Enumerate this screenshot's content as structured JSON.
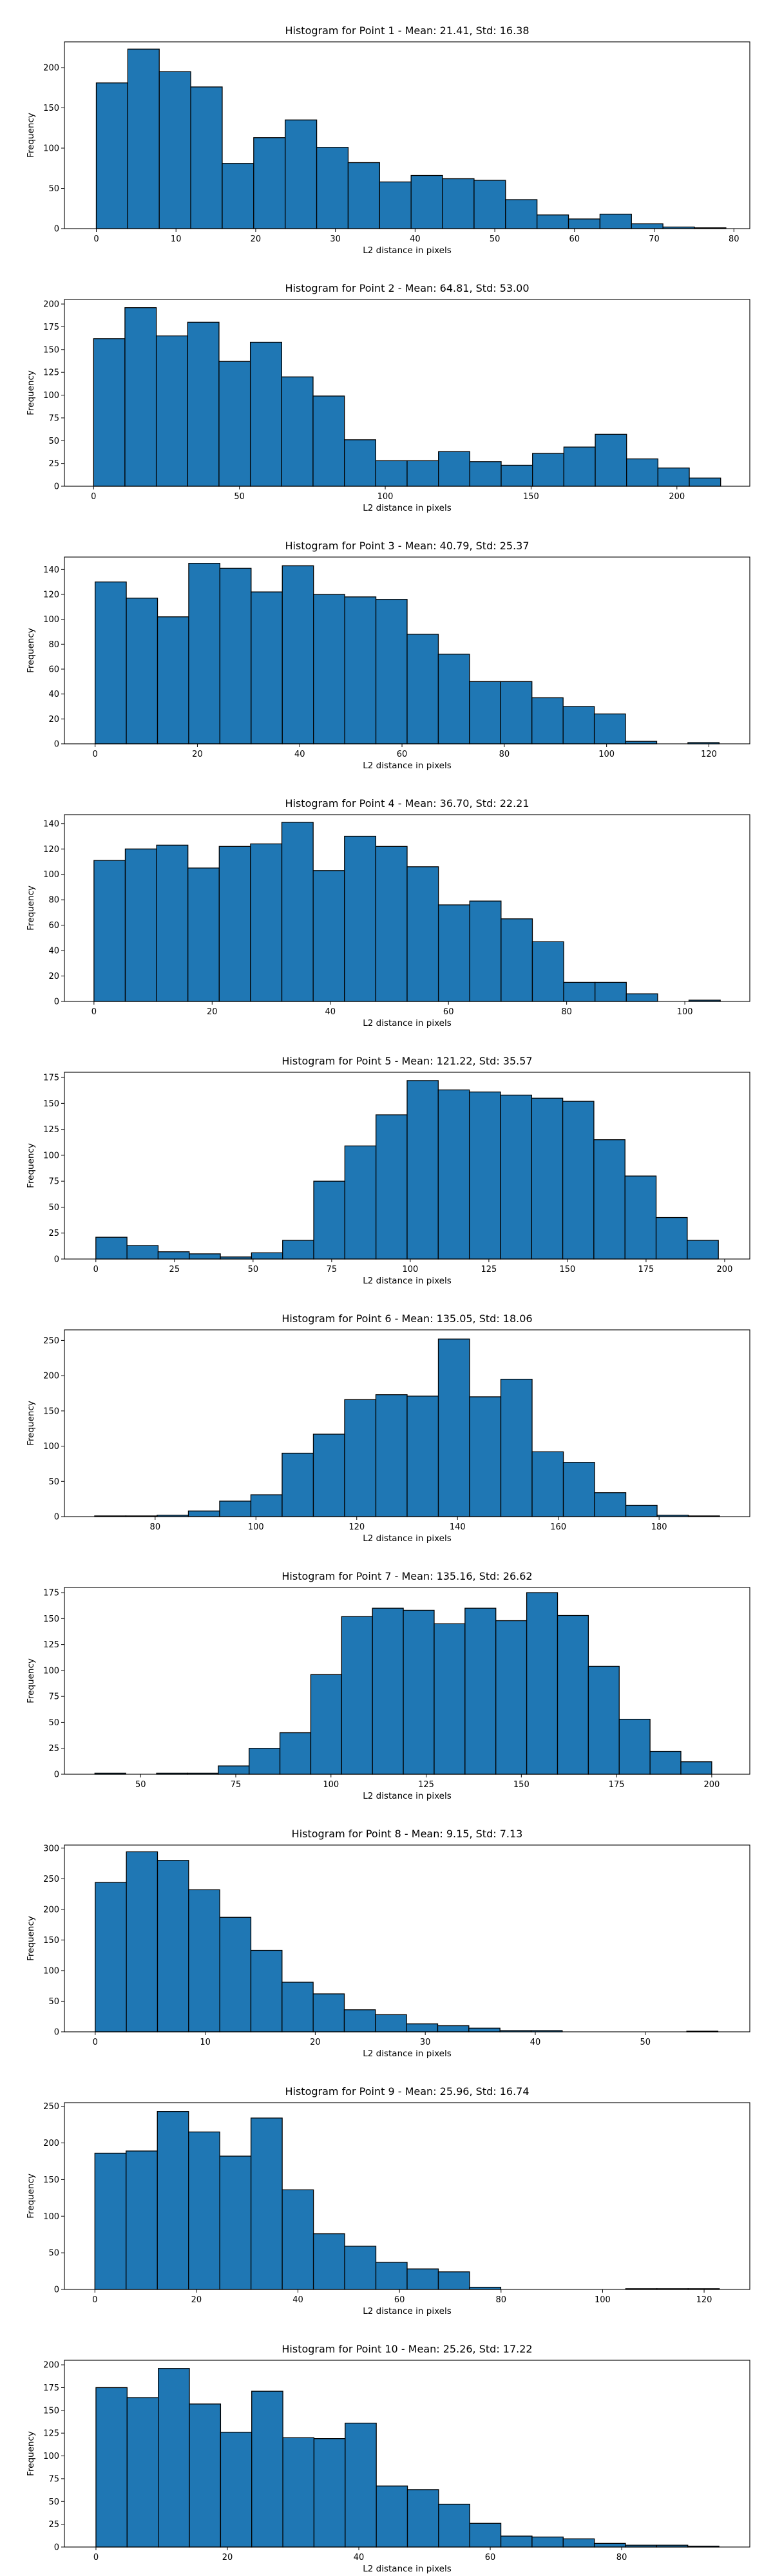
{
  "colors": {
    "bar_fill": "#1f77b4",
    "bar_edge": "#000000",
    "axes": "#000000",
    "background": "#ffffff"
  },
  "chart_data": [
    {
      "type": "bar",
      "title": "Histogram for Point 1 - Mean: 21.41, Std: 16.38",
      "xlabel": "L2 distance in pixels",
      "ylabel": "Frequency",
      "grid": false,
      "xlim": [
        -4,
        82
      ],
      "ylim": [
        0,
        232
      ],
      "xticks": [
        0,
        10,
        20,
        30,
        40,
        50,
        60,
        70,
        80
      ],
      "yticks": [
        0,
        50,
        100,
        150,
        200
      ],
      "bin_edges": [
        0,
        3.95,
        7.9,
        11.85,
        15.8,
        19.75,
        23.7,
        27.65,
        31.6,
        35.55,
        39.5,
        43.45,
        47.4,
        51.35,
        55.3,
        59.25,
        63.2,
        67.15,
        71.1,
        75.05,
        79
      ],
      "counts": [
        181,
        223,
        195,
        176,
        81,
        113,
        135,
        101,
        82,
        58,
        66,
        62,
        60,
        36,
        17,
        12,
        18,
        6,
        2,
        1
      ]
    },
    {
      "type": "bar",
      "title": "Histogram for Point 2 - Mean: 64.81, Std: 53.00",
      "xlabel": "L2 distance in pixels",
      "ylabel": "Frequency",
      "grid": false,
      "xlim": [
        -10,
        225
      ],
      "ylim": [
        0,
        205
      ],
      "xticks": [
        0,
        50,
        100,
        150,
        200
      ],
      "yticks": [
        0,
        25,
        50,
        75,
        100,
        125,
        150,
        175,
        200
      ],
      "bin_edges": [
        0,
        10.75,
        21.5,
        32.25,
        43,
        53.75,
        64.5,
        75.25,
        86,
        96.75,
        107.5,
        118.25,
        129,
        139.75,
        150.5,
        161.25,
        172,
        182.75,
        193.5,
        204.25,
        215
      ],
      "counts": [
        162,
        196,
        165,
        180,
        137,
        158,
        120,
        99,
        51,
        28,
        28,
        38,
        27,
        23,
        36,
        43,
        57,
        30,
        20,
        9
      ]
    },
    {
      "type": "bar",
      "title": "Histogram for Point 3 - Mean: 40.79, Std: 25.37",
      "xlabel": "L2 distance in pixels",
      "ylabel": "Frequency",
      "grid": false,
      "xlim": [
        -6,
        128
      ],
      "ylim": [
        0,
        150
      ],
      "xticks": [
        0,
        20,
        40,
        60,
        80,
        100,
        120
      ],
      "yticks": [
        0,
        20,
        40,
        60,
        80,
        100,
        120,
        140
      ],
      "bin_edges": [
        0,
        6.1,
        12.2,
        18.3,
        24.4,
        30.5,
        36.6,
        42.7,
        48.8,
        54.9,
        61,
        67.1,
        73.2,
        79.3,
        85.4,
        91.5,
        97.6,
        103.7,
        109.8,
        115.9,
        122
      ],
      "counts": [
        130,
        117,
        102,
        145,
        141,
        122,
        143,
        120,
        118,
        116,
        88,
        72,
        50,
        50,
        37,
        30,
        24,
        2,
        0,
        1
      ]
    },
    {
      "type": "bar",
      "title": "Histogram for Point 4 - Mean: 36.70, Std: 22.21",
      "xlabel": "L2 distance in pixels",
      "ylabel": "Frequency",
      "grid": false,
      "xlim": [
        -5,
        111
      ],
      "ylim": [
        0,
        147
      ],
      "xticks": [
        0,
        20,
        40,
        60,
        80,
        100
      ],
      "yticks": [
        0,
        20,
        40,
        60,
        80,
        100,
        120,
        140
      ],
      "bin_edges": [
        0,
        5.3,
        10.6,
        15.9,
        21.2,
        26.5,
        31.8,
        37.1,
        42.4,
        47.7,
        53,
        58.3,
        63.6,
        68.9,
        74.2,
        79.5,
        84.8,
        90.1,
        95.4,
        100.7,
        106
      ],
      "counts": [
        111,
        120,
        123,
        105,
        122,
        124,
        141,
        103,
        130,
        122,
        106,
        76,
        79,
        65,
        47,
        15,
        15,
        6,
        0,
        1
      ]
    },
    {
      "type": "bar",
      "title": "Histogram for Point 5 - Mean: 121.22, Std: 35.57",
      "xlabel": "L2 distance in pixels",
      "ylabel": "Frequency",
      "grid": false,
      "xlim": [
        -10,
        208
      ],
      "ylim": [
        0,
        180
      ],
      "xticks": [
        0,
        25,
        50,
        75,
        100,
        125,
        150,
        175,
        200
      ],
      "yticks": [
        0,
        25,
        50,
        75,
        100,
        125,
        150,
        175
      ],
      "bin_edges": [
        0,
        9.9,
        19.8,
        29.7,
        39.6,
        49.5,
        59.4,
        69.3,
        79.2,
        89.1,
        99,
        108.9,
        118.8,
        128.7,
        138.6,
        148.5,
        158.4,
        168.3,
        178.2,
        188.1,
        198
      ],
      "counts": [
        21,
        13,
        7,
        5,
        2,
        6,
        18,
        75,
        109,
        139,
        172,
        163,
        161,
        158,
        155,
        152,
        115,
        80,
        40,
        18
      ]
    },
    {
      "type": "bar",
      "title": "Histogram for Point 6 - Mean: 135.05, Std: 18.06",
      "xlabel": "L2 distance in pixels",
      "ylabel": "Frequency",
      "grid": false,
      "xlim": [
        62,
        198
      ],
      "ylim": [
        0,
        265
      ],
      "xticks": [
        80,
        100,
        120,
        140,
        160,
        180
      ],
      "yticks": [
        0,
        50,
        100,
        150,
        200,
        250
      ],
      "bin_edges": [
        68,
        74.2,
        80.4,
        86.6,
        92.8,
        99,
        105.2,
        111.4,
        117.6,
        123.8,
        130,
        136.2,
        142.4,
        148.6,
        154.8,
        161,
        167.2,
        173.4,
        179.6,
        185.8,
        192
      ],
      "counts": [
        1,
        1,
        2,
        8,
        22,
        31,
        90,
        117,
        166,
        173,
        171,
        252,
        170,
        195,
        92,
        77,
        34,
        16,
        2,
        1
      ]
    },
    {
      "type": "bar",
      "title": "Histogram for Point 7 - Mean: 135.16, Std: 26.62",
      "xlabel": "L2 distance in pixels",
      "ylabel": "Frequency",
      "grid": false,
      "xlim": [
        30,
        210
      ],
      "ylim": [
        0,
        180
      ],
      "xticks": [
        50,
        75,
        100,
        125,
        150,
        175,
        200
      ],
      "yticks": [
        0,
        25,
        50,
        75,
        100,
        125,
        150,
        175
      ],
      "bin_edges": [
        38,
        46.1,
        54.2,
        62.3,
        70.4,
        78.5,
        86.6,
        94.7,
        102.8,
        110.9,
        119,
        127.1,
        135.2,
        143.3,
        151.4,
        159.5,
        167.6,
        175.7,
        183.8,
        191.9,
        200
      ],
      "counts": [
        1,
        0,
        1,
        1,
        8,
        25,
        40,
        96,
        152,
        160,
        158,
        145,
        160,
        148,
        175,
        153,
        104,
        53,
        22,
        12
      ]
    },
    {
      "type": "bar",
      "title": "Histogram for Point 8 - Mean: 9.15, Std: 7.13",
      "xlabel": "L2 distance in pixels",
      "ylabel": "Frequency",
      "grid": false,
      "xlim": [
        -2.8,
        59.5
      ],
      "ylim": [
        0,
        305
      ],
      "xticks": [
        0,
        10,
        20,
        30,
        40,
        50
      ],
      "yticks": [
        0,
        50,
        100,
        150,
        200,
        250,
        300
      ],
      "bin_edges": [
        0,
        2.83,
        5.66,
        8.49,
        11.32,
        14.15,
        16.98,
        19.81,
        22.64,
        25.47,
        28.3,
        31.13,
        33.96,
        36.79,
        39.62,
        42.45,
        45.28,
        48.11,
        50.94,
        53.77,
        56.6
      ],
      "counts": [
        244,
        294,
        280,
        232,
        187,
        133,
        81,
        62,
        36,
        28,
        13,
        10,
        6,
        2,
        2,
        0,
        0,
        0,
        0,
        1
      ]
    },
    {
      "type": "bar",
      "title": "Histogram for Point 9 - Mean: 25.96, Std: 16.74",
      "xlabel": "L2 distance in pixels",
      "ylabel": "Frequency",
      "grid": false,
      "xlim": [
        -6,
        129
      ],
      "ylim": [
        0,
        255
      ],
      "xticks": [
        0,
        20,
        40,
        60,
        80,
        100,
        120
      ],
      "yticks": [
        0,
        50,
        100,
        150,
        200,
        250
      ],
      "bin_edges": [
        0,
        6.15,
        12.3,
        18.45,
        24.6,
        30.75,
        36.9,
        43.05,
        49.2,
        55.35,
        61.5,
        67.65,
        73.8,
        79.95,
        86.1,
        92.25,
        98.4,
        104.55,
        110.7,
        116.85,
        123
      ],
      "counts": [
        186,
        189,
        243,
        215,
        182,
        234,
        136,
        76,
        59,
        37,
        28,
        24,
        3,
        0,
        0,
        0,
        0,
        1,
        1,
        1
      ]
    },
    {
      "type": "bar",
      "title": "Histogram for Point 10 - Mean: 25.26, Std: 17.22",
      "xlabel": "L2 distance in pixels",
      "ylabel": "Frequency",
      "grid": false,
      "xlim": [
        -4.8,
        99.5
      ],
      "ylim": [
        0,
        205
      ],
      "xticks": [
        0,
        20,
        40,
        60,
        80
      ],
      "yticks": [
        0,
        25,
        50,
        75,
        100,
        125,
        150,
        175,
        200
      ],
      "bin_edges": [
        0,
        4.74,
        9.48,
        14.22,
        18.96,
        23.7,
        28.44,
        33.18,
        37.92,
        42.66,
        47.4,
        52.14,
        56.88,
        61.62,
        66.36,
        71.1,
        75.84,
        80.58,
        85.32,
        90.06,
        94.8
      ],
      "counts": [
        175,
        164,
        196,
        157,
        126,
        171,
        120,
        119,
        136,
        67,
        63,
        47,
        26,
        12,
        11,
        9,
        4,
        2,
        2,
        1
      ]
    }
  ]
}
